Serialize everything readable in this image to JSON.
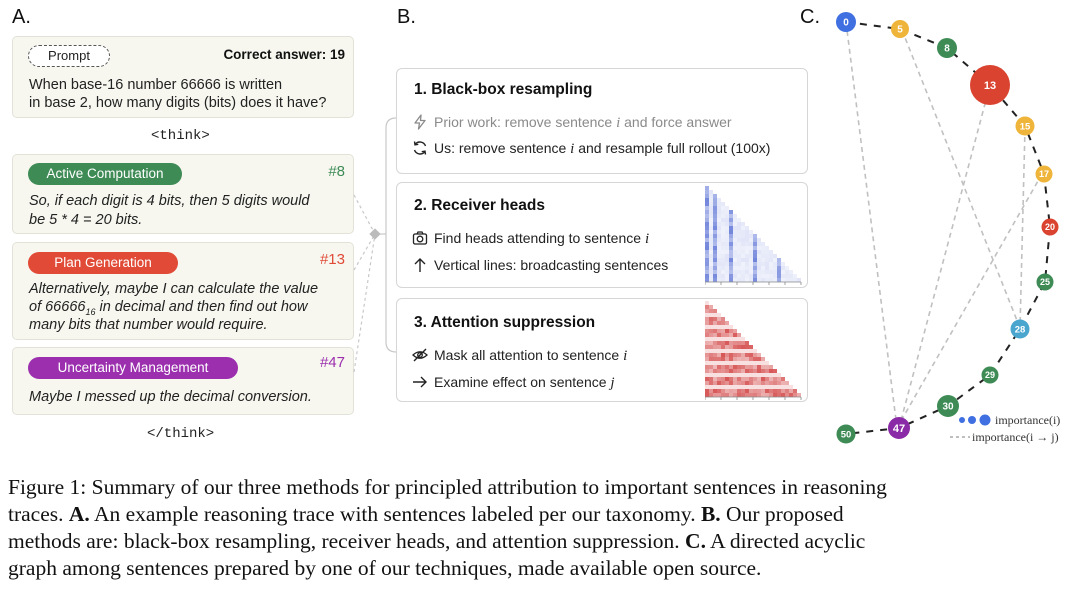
{
  "panel_a": {
    "letter": "A.",
    "prompt_label": "Prompt",
    "correct_answer": "Correct answer: 19",
    "question_line1": "When base-16 number 66666 is written",
    "question_line2": "in base 2, how many digits (bits) does it have?",
    "think_open": "<think>",
    "think_close": "</think>",
    "sentences": [
      {
        "category": "Active Computation",
        "index": "#8",
        "color": "#3e8b56",
        "line1": "So, if each digit is 4 bits, then 5 digits would",
        "line2": "be 5 * 4 = 20 bits.",
        "line3": ""
      },
      {
        "category": "Plan Generation",
        "index": "#13",
        "color": "#e04a36",
        "line1": "Alternatively, maybe I can calculate the value",
        "line2_pre": "of 66666",
        "line2_sub": "16",
        "line2_post": " in decimal and then find out how",
        "line3": "many bits that number would require."
      },
      {
        "category": "Uncertainty Management",
        "index": "#47",
        "color": "#9b2fae",
        "line1": "Maybe I messed up the decimal conversion.",
        "line2": "",
        "line3": ""
      }
    ]
  },
  "panel_b": {
    "letter": "B.",
    "methods": [
      {
        "title": "1. Black-box resampling",
        "rows": [
          {
            "icon": "lightning-icon",
            "pre": "Prior work: remove sentence ",
            "var": "i",
            "post": " and force answer",
            "muted": true
          },
          {
            "icon": "refresh-icon",
            "pre": "Us: remove sentence ",
            "var": "i",
            "post": " and resample full rollout (100x)",
            "muted": false
          }
        ]
      },
      {
        "title": "2. Receiver heads",
        "rows": [
          {
            "icon": "camera-icon",
            "pre": "Find heads attending to sentence ",
            "var": "i",
            "post": "",
            "muted": false
          },
          {
            "icon": "arrow-up-icon",
            "pre": "Vertical lines: broadcasting sentences",
            "var": "",
            "post": "",
            "muted": false
          }
        ]
      },
      {
        "title": "3. Attention suppression",
        "rows": [
          {
            "icon": "eye-off-icon",
            "pre": "Mask all attention to sentence ",
            "var": "i",
            "post": "",
            "muted": false
          },
          {
            "icon": "arrow-right-icon",
            "pre": "Examine effect on sentence ",
            "var": "j",
            "post": "",
            "muted": false
          }
        ]
      }
    ]
  },
  "panel_c": {
    "letter": "C.",
    "nodes": [
      {
        "label": "0",
        "color": "#3f6fe0"
      },
      {
        "label": "5",
        "color": "#efb43a"
      },
      {
        "label": "8",
        "color": "#3e8b56"
      },
      {
        "label": "13",
        "color": "#d9432f"
      },
      {
        "label": "15",
        "color": "#efb43a"
      },
      {
        "label": "17",
        "color": "#efb43a"
      },
      {
        "label": "20",
        "color": "#d9432f"
      },
      {
        "label": "25",
        "color": "#3e8b56"
      },
      {
        "label": "28",
        "color": "#4aa6cf"
      },
      {
        "label": "29",
        "color": "#3e8b56"
      },
      {
        "label": "30",
        "color": "#3e8b56"
      },
      {
        "label": "47",
        "color": "#8a2aa6"
      },
      {
        "label": "50",
        "color": "#3e8b56"
      }
    ],
    "legend_node": "importance(i)",
    "legend_edge": "importance(i → j)"
  },
  "caption": {
    "line1": "Figure 1: Summary of our three methods for principled attribution to important sentences in reasoning",
    "line2_pre": "traces. ",
    "line2_a": "A.",
    "line2_mid": " An example reasoning trace with sentences labeled per our taxonomy. ",
    "line2_b": "B.",
    "line2_post": " Our proposed",
    "line3_pre": "methods are: black-box resampling, receiver heads, and attention suppression. ",
    "line3_c": "C.",
    "line3_post": " A directed acyclic",
    "line4": "graph among sentences prepared by one of our techniques, made available open source."
  }
}
